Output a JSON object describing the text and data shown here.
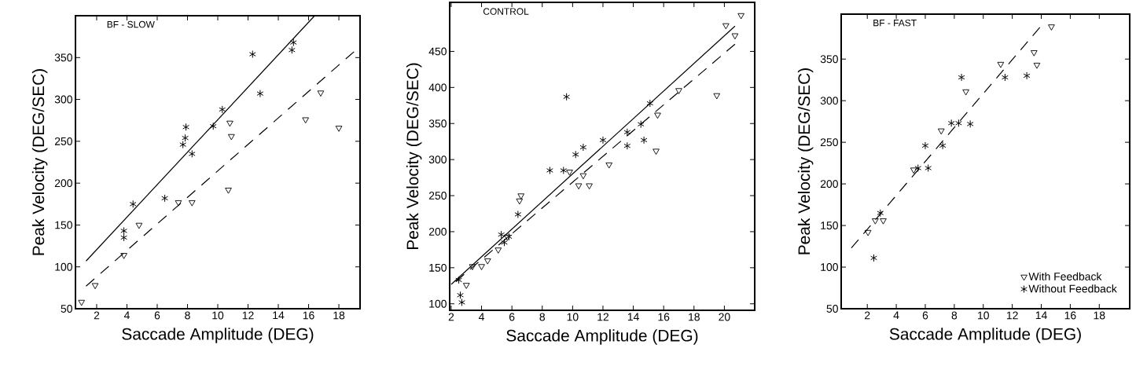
{
  "chart_data": [
    {
      "type": "scatter",
      "title": "BF - SLOW",
      "xlabel": "Saccade Amplitude (DEG)",
      "ylabel": "Peak Velocity (DEG/SEC)",
      "xlim": [
        0.6,
        19.4
      ],
      "ylim": [
        50,
        400
      ],
      "xticks": [
        2,
        4,
        6,
        8,
        10,
        12,
        14,
        16,
        18
      ],
      "yticks": [
        50,
        100,
        150,
        200,
        250,
        300,
        350
      ],
      "series": [
        {
          "marker": "triangle",
          "color": "#000000",
          "x": [
            1.0,
            1.9,
            3.8,
            4.8,
            7.4,
            8.3,
            10.7,
            10.8,
            10.9,
            15.8,
            16.8,
            18.0
          ],
          "values": [
            58,
            78,
            114,
            150,
            177,
            177,
            192,
            272,
            256,
            276,
            308,
            266
          ]
        },
        {
          "marker": "cross",
          "color": "#000000",
          "x": [
            4.4,
            3.8,
            3.8,
            6.5,
            7.9,
            7.85,
            7.7,
            8.3,
            9.7,
            10.3,
            12.3,
            12.8,
            14.9,
            15.0
          ],
          "values": [
            175,
            143,
            135,
            182,
            267,
            254,
            246,
            235,
            268,
            288,
            354,
            307,
            359,
            368
          ]
        },
        {
          "type": "line",
          "marker": "none",
          "line_style": "solid",
          "color": "#000000",
          "x": [
            1.3,
            16.4
          ],
          "values": [
            107,
            400
          ]
        },
        {
          "type": "line",
          "marker": "none",
          "line_style": "dashed",
          "color": "#000000",
          "x": [
            1.3,
            19.0
          ],
          "values": [
            77,
            357
          ]
        }
      ]
    },
    {
      "type": "scatter",
      "title": "CONTROL",
      "xlabel": "Saccade Amplitude (DEG)",
      "ylabel": "Peak Velocity (DEG/SEC)",
      "xlim": [
        1.9,
        22
      ],
      "ylim": [
        91,
        518
      ],
      "xticks": [
        2,
        4,
        6,
        8,
        10,
        12,
        14,
        16,
        18,
        20
      ],
      "yticks": [
        100,
        150,
        200,
        250,
        300,
        350,
        400,
        450
      ],
      "series": [
        {
          "marker": "triangle",
          "color": "#000000",
          "x": [
            21.1,
            20.1,
            20.7,
            17.0,
            19.5,
            15.6,
            15.5,
            12.4,
            9.8,
            10.7,
            10.4,
            11.1,
            6.6,
            6.5,
            5.1,
            5.7,
            4.4,
            4.0,
            3.4,
            3.0
          ],
          "values": [
            500,
            486,
            472,
            396,
            389,
            362,
            312,
            293,
            283,
            278,
            264,
            264,
            250,
            243,
            175,
            193,
            160,
            152,
            152,
            126
          ]
        },
        {
          "marker": "cross",
          "color": "#000000",
          "x": [
            2.5,
            2.6,
            2.7,
            5.3,
            5.5,
            5.8,
            6.4,
            8.5,
            9.4,
            9.6,
            10.2,
            10.7,
            12.0,
            13.6,
            13.6,
            14.5,
            14.7,
            15.1
          ],
          "values": [
            133,
            112,
            102,
            196,
            185,
            193,
            224,
            285,
            285,
            387,
            307,
            317,
            327,
            338,
            319,
            349,
            327,
            378
          ]
        },
        {
          "type": "line",
          "marker": "none",
          "line_style": "solid",
          "color": "#000000",
          "x": [
            2.0,
            20.7
          ],
          "values": [
            127,
            485
          ]
        },
        {
          "type": "line",
          "marker": "none",
          "line_style": "dashed",
          "color": "#000000",
          "x": [
            2.3,
            20.7
          ],
          "values": [
            131,
            460
          ]
        }
      ]
    },
    {
      "type": "scatter",
      "title": "BF - FAST",
      "xlabel": "Saccade Amplitude (DEG)",
      "ylabel": "Peak Velocity (DEG/SEC)",
      "xlim": [
        0.2,
        20.1
      ],
      "ylim": [
        50,
        404
      ],
      "xticks": [
        2,
        4,
        6,
        8,
        10,
        12,
        14,
        16,
        18
      ],
      "yticks": [
        50,
        100,
        150,
        200,
        250,
        300,
        350
      ],
      "legend": "bottom right",
      "series": [
        {
          "name": "With Feedback",
          "marker": "triangle",
          "color": "#000000",
          "x": [
            2.05,
            2.55,
            3.1,
            5.2,
            7.1,
            8.8,
            11.2,
            13.5,
            13.7,
            14.7
          ],
          "values": [
            142,
            156,
            156,
            217,
            264,
            311,
            344,
            358,
            343,
            389
          ]
        },
        {
          "name": "Without Feedback",
          "marker": "cross",
          "color": "#000000",
          "x": [
            2.45,
            2.9,
            5.5,
            6.2,
            6.0,
            7.2,
            7.8,
            8.3,
            9.1,
            8.5,
            11.5,
            13.0
          ],
          "values": [
            111,
            165,
            219,
            219,
            246,
            246,
            273,
            273,
            272,
            328,
            328,
            330
          ]
        },
        {
          "type": "line",
          "marker": "none",
          "line_style": "dashed",
          "color": "#000000",
          "x": [
            0.9,
            13.9
          ],
          "values": [
            123,
            388
          ]
        }
      ]
    }
  ]
}
